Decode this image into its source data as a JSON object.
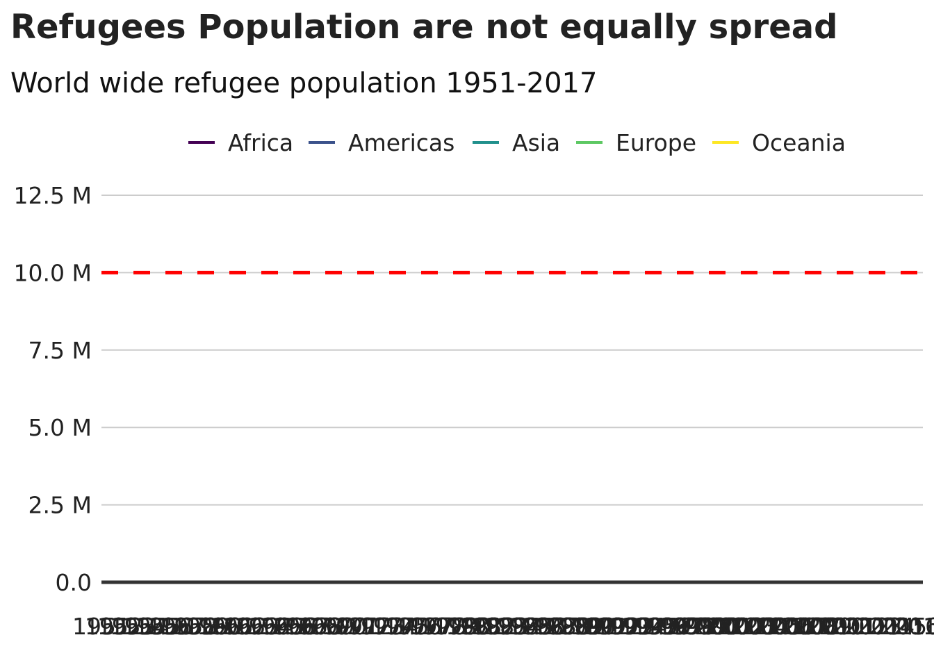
{
  "chart_data": {
    "type": "line",
    "title": "Refugees Population are not equally spread",
    "subtitle": "World wide refugee population 1951-2017",
    "xlabel": "",
    "ylabel": "",
    "legend_position": "top",
    "grid": true,
    "ylim": [
      0,
      12500000
    ],
    "y_ticks": [
      {
        "value": 0,
        "label": "0.0"
      },
      {
        "value": 2500000,
        "label": "2.5 M"
      },
      {
        "value": 5000000,
        "label": "5.0 M"
      },
      {
        "value": 7500000,
        "label": "7.5 M"
      },
      {
        "value": 10000000,
        "label": "10.0 M"
      },
      {
        "value": 12500000,
        "label": "12.5 M"
      }
    ],
    "x_categories": [
      "1951",
      "1952",
      "1953",
      "1954",
      "1955",
      "1956",
      "1957",
      "1958",
      "1959",
      "1960",
      "1961",
      "1962",
      "1963",
      "1964",
      "1965",
      "1966",
      "1967",
      "1968",
      "1969",
      "1970",
      "1971",
      "1972",
      "1973",
      "1974",
      "1975",
      "1976",
      "1977",
      "1978",
      "1979",
      "1980",
      "1981",
      "1982",
      "1983",
      "1984",
      "1985",
      "1986",
      "1987",
      "1988",
      "1989",
      "1990",
      "1991",
      "1992",
      "1993",
      "1994",
      "1995",
      "1996",
      "1997",
      "1998",
      "1999",
      "2000",
      "2001",
      "2002",
      "2003",
      "2004",
      "2005",
      "2006",
      "2007",
      "2008",
      "2009",
      "2010",
      "2011",
      "2012",
      "2013",
      "2014",
      "2015",
      "2016",
      "2017"
    ],
    "series": [
      {
        "name": "Africa",
        "color": "#440154",
        "values": []
      },
      {
        "name": "Americas",
        "color": "#3b528b",
        "values": []
      },
      {
        "name": "Asia",
        "color": "#21908c",
        "values": []
      },
      {
        "name": "Europe",
        "color": "#5dc863",
        "values": []
      },
      {
        "name": "Oceania",
        "color": "#fde725",
        "values": []
      }
    ],
    "reference_line": {
      "value": 10000000,
      "color": "#ff0000",
      "style": "dashed"
    },
    "colors": {
      "grid": "#cccccc",
      "baseline": "#333333"
    }
  }
}
